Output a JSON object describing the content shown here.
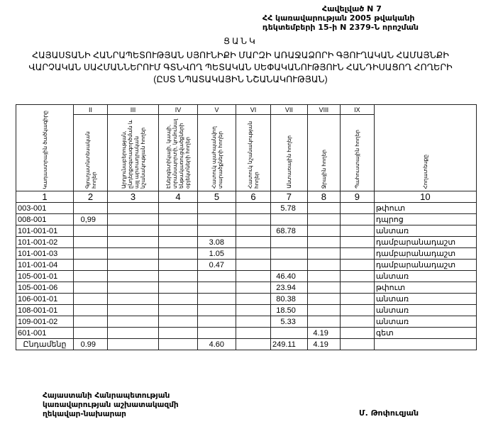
{
  "annex": [
    "Հավելված N 7",
    "ՀՀ կառավարության 2005 թվականի",
    "դեկտեմբերի 15-ի N 2379-Ն որոշման"
  ],
  "title": "ՑԱՆԿ",
  "subtitle": [
    "ՀԱՅԱՍՏԱՆԻ ՀԱՆՐԱՊԵՏՈՒԹՅԱՆ ՍՅՈՒՆԻՔԻ ՄԱՐԶԻ ԱՌԱՋԱՁՈՐԻ ԳՅՈՒՂԱԿԱՆ ՀԱՄԱՅՆՔԻ",
    "ՎԱՐՉԱԿԱՆ ՍԱՀՄԱՆՆԵՐՈՒՄ ԳՏՆՎՈՂ ՊԵՏԱԿԱՆ ՍԵՓԱԿԱՆՈՒԹՅՈՒՆ ՀԱՆԴԻՍԱՑՈՂ ՀՈՂԵՐԻ",
    "(ԸՍՏ ՆՊԱՏԱԿԱՅԻՆ ՆՇԱՆԱԿՈՒԹՅԱՆ)"
  ],
  "table": {
    "roman": [
      "II",
      "III",
      "IV",
      "V",
      "VI",
      "VII",
      "VIII",
      "IX"
    ],
    "headers": [
      "Կադաստրային ծածկագիրը",
      "Գյուղատնտեսական հողեր",
      "Արդյունաբերության, ընդերքօգտագործման և այլ արտադրական նշանակության հողեր",
      "Էներգետիկայի, կապի, տրանսպորտի, կոմունալ ենթակառուցվածքների օբյեկտների հողեր",
      "Հատուկ պահպանվող տարածքների հողեր",
      "Հատուկ նշանակության հողեր",
      "Անտառային հողեր",
      "Ջրային հողեր",
      "Պահուստային հողեր",
      "Հողատեսքը"
    ],
    "numbers": [
      "1",
      "2",
      "3",
      "4",
      "5",
      "6",
      "7",
      "8",
      "9",
      "10"
    ],
    "rows": [
      [
        "003-001",
        "",
        "",
        "",
        "",
        "",
        "5.78",
        "",
        "",
        "թփուտ"
      ],
      [
        "008-001",
        "0,99",
        "",
        "",
        "",
        "",
        "",
        "",
        "",
        "դպրոց"
      ],
      [
        "101-001-01",
        "",
        "",
        "",
        "",
        "",
        "68.78",
        "",
        "",
        "անտառ"
      ],
      [
        "101-001-02",
        "",
        "",
        "",
        "3.08",
        "",
        "",
        "",
        "",
        "դամբարանադաշտ"
      ],
      [
        "101-001-03",
        "",
        "",
        "",
        "1.05",
        "",
        "",
        "",
        "",
        "դամբարանադաշտ"
      ],
      [
        "101-001-04",
        "",
        "",
        "",
        "0.47",
        "",
        "",
        "",
        "",
        "դամբարանադաշտ"
      ],
      [
        "105-001-01",
        "",
        "",
        "",
        "",
        "",
        "46.40",
        "",
        "",
        "անտառ"
      ],
      [
        "105-001-06",
        "",
        "",
        "",
        "",
        "",
        "23.94",
        "",
        "",
        "թփուտ"
      ],
      [
        "106-001-01",
        "",
        "",
        "",
        "",
        "",
        "80.38",
        "",
        "",
        "անտառ"
      ],
      [
        "108-001-01",
        "",
        "",
        "",
        "",
        "",
        "18.50",
        "",
        "",
        "անտառ"
      ],
      [
        "109-001-02",
        "",
        "",
        "",
        "",
        "",
        "5.33",
        "",
        "",
        "անտառ"
      ],
      [
        "601-001",
        "",
        "",
        "",
        "",
        "",
        "",
        "4.19",
        "",
        "գետ"
      ]
    ],
    "total": [
      "Ընդամենը",
      "0.99",
      "",
      "",
      "4.60",
      "",
      "249.11",
      "4.19",
      "",
      ""
    ]
  },
  "footer": {
    "position": [
      "Հայաստանի Հանրապետության",
      "կառավարության աշխատակազմի",
      "ղեկավար-նախարար"
    ],
    "signatory": "Մ. Թոփուզյան"
  }
}
